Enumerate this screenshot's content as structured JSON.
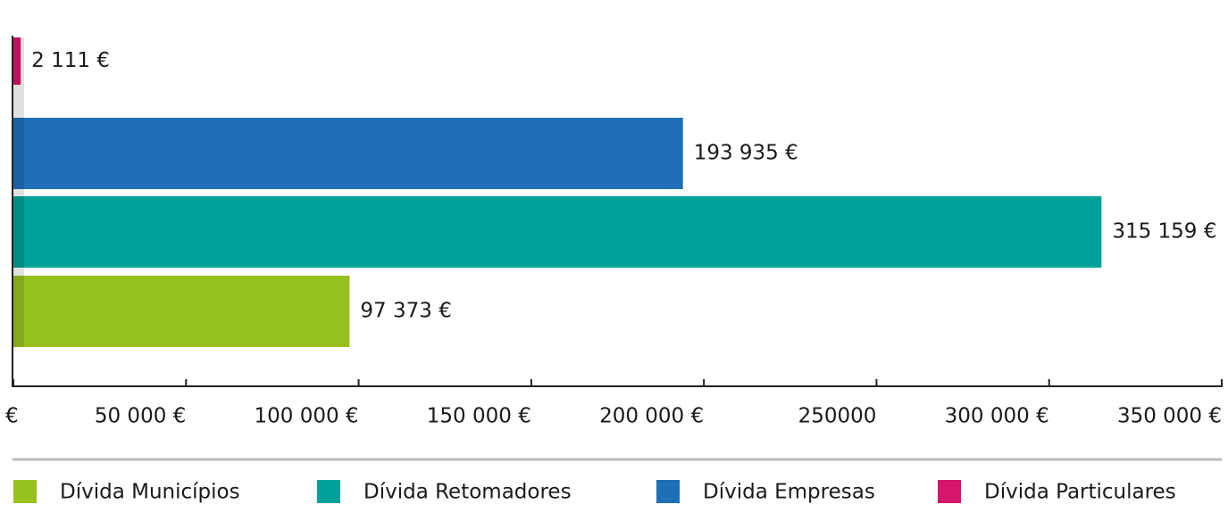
{
  "chart_data": {
    "type": "bar",
    "orientation": "horizontal",
    "series": [
      {
        "name": "Dívida Municípios",
        "color": "#97c11f",
        "values": [
          97373
        ],
        "value_labels": [
          "97 373 €"
        ]
      },
      {
        "name": "Dívida Retomadores",
        "color": "#00a19a",
        "values": [
          315159
        ],
        "value_labels": [
          "315 159 €"
        ]
      },
      {
        "name": "Dívida Empresas",
        "color": "#1f6fb8",
        "values": [
          193935
        ],
        "value_labels": [
          "193 935 €"
        ]
      },
      {
        "name": "Dívida Particulares",
        "color": "#d6156c",
        "values": [
          2111
        ],
        "value_labels": [
          "2 111 €"
        ]
      }
    ],
    "xlim": [
      0,
      350000
    ],
    "xticks": [
      {
        "value": 0,
        "label": "€"
      },
      {
        "value": 50000,
        "label": "50 000 €"
      },
      {
        "value": 100000,
        "label": "100 000 €"
      },
      {
        "value": 150000,
        "label": "150 000 €"
      },
      {
        "value": 200000,
        "label": "200 000 €"
      },
      {
        "value": 250000,
        "label": "250000"
      },
      {
        "value": 300000,
        "label": "300 000 €"
      },
      {
        "value": 350000,
        "label": "350 000 €"
      }
    ],
    "legend": "bottom"
  }
}
